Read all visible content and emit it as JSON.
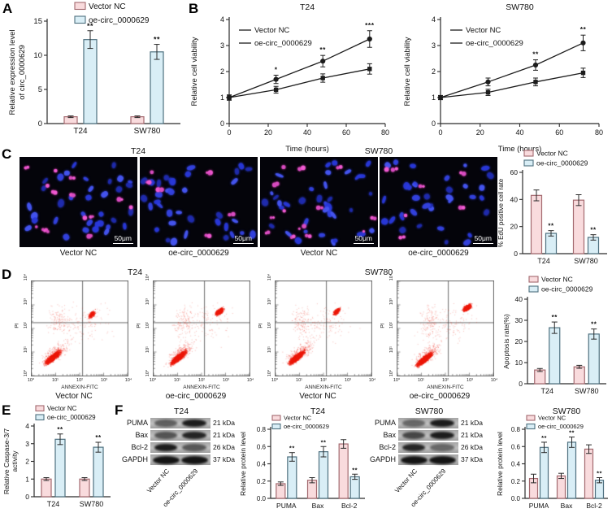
{
  "figure": {
    "panel_labels": {
      "A": "A",
      "B": "B",
      "C": "C",
      "D": "D",
      "E": "E",
      "F": "F"
    },
    "legend": {
      "vector_nc": "Vector NC",
      "oe": "oe-circ_0000629"
    }
  },
  "colors": {
    "vector_nc_fill": "#f9dbdd",
    "vector_nc_border": "#a3696f",
    "oe_fill": "#d9eef6",
    "oe_border": "#4e707f",
    "line": "#1c1c1c",
    "axis": "#2a2a2a",
    "error": "#2a2a2a",
    "flow_dot": "#ee1c0c",
    "star": "#111111",
    "edu_blue": "#2d3ce6",
    "edu_pink": "#f05ad2"
  },
  "chart_data": [
    {
      "id": "A",
      "type": "bar",
      "title": "",
      "ylabel": "Relative expression level\nof circ_0000629",
      "ylim": [
        0,
        15
      ],
      "yticks": [
        0,
        5,
        10,
        15
      ],
      "categories": [
        "T24",
        "SW780"
      ],
      "series": [
        {
          "name": "Vector NC",
          "values": [
            1.0,
            1.0
          ],
          "errors": [
            0.12,
            0.12
          ],
          "stars": [
            "",
            ""
          ]
        },
        {
          "name": "oe-circ_0000629",
          "values": [
            12.3,
            10.5
          ],
          "errors": [
            1.3,
            1.1
          ],
          "stars": [
            "**",
            "**"
          ]
        }
      ]
    },
    {
      "id": "B_T24",
      "type": "line",
      "title": "T24",
      "xlabel": "Time (hours)",
      "ylabel": "Relative cell viability",
      "xlim": [
        0,
        80
      ],
      "xticks": [
        0,
        20,
        40,
        60,
        80
      ],
      "ylim": [
        0,
        4
      ],
      "yticks": [
        0,
        1,
        2,
        3,
        4
      ],
      "x": [
        0,
        24,
        48,
        72
      ],
      "series": [
        {
          "name": "Vector NC",
          "marker": "circle",
          "values": [
            1.0,
            1.7,
            2.4,
            3.25
          ],
          "errors": [
            0.1,
            0.16,
            0.22,
            0.32
          ]
        },
        {
          "name": "oe-circ_0000629",
          "marker": "square",
          "values": [
            1.0,
            1.3,
            1.75,
            2.1
          ],
          "errors": [
            0.1,
            0.13,
            0.16,
            0.2
          ]
        }
      ],
      "stars": [
        {
          "i": 1,
          "label": "*"
        },
        {
          "i": 2,
          "label": "**"
        },
        {
          "i": 3,
          "label": "***"
        }
      ]
    },
    {
      "id": "B_SW780",
      "type": "line",
      "title": "SW780",
      "xlabel": "Time (hours)",
      "ylabel": "Relative cell viability",
      "xlim": [
        0,
        80
      ],
      "xticks": [
        0,
        20,
        40,
        60,
        80
      ],
      "ylim": [
        0,
        4
      ],
      "yticks": [
        0,
        1,
        2,
        3,
        4
      ],
      "x": [
        0,
        24,
        48,
        72
      ],
      "series": [
        {
          "name": "Vector NC",
          "marker": "circle",
          "values": [
            1.0,
            1.6,
            2.25,
            3.1
          ],
          "errors": [
            0.08,
            0.15,
            0.2,
            0.3
          ]
        },
        {
          "name": "oe-circ_0000629",
          "marker": "square",
          "values": [
            1.0,
            1.2,
            1.6,
            1.95
          ],
          "errors": [
            0.08,
            0.12,
            0.15,
            0.18
          ]
        }
      ],
      "stars": [
        {
          "i": 2,
          "label": "**"
        },
        {
          "i": 3,
          "label": "**"
        }
      ]
    },
    {
      "id": "C_EDU",
      "type": "bar",
      "title": "",
      "ylabel": "% EdU positive cell rate",
      "ylim": [
        0,
        60
      ],
      "yticks": [
        0,
        20,
        40,
        60
      ],
      "categories": [
        "T24",
        "SW780"
      ],
      "series": [
        {
          "name": "Vector NC",
          "values": [
            43,
            39.5
          ],
          "errors": [
            4,
            4
          ],
          "stars": [
            "",
            ""
          ]
        },
        {
          "name": "oe-circ_0000629",
          "values": [
            15,
            12
          ],
          "errors": [
            2,
            2
          ],
          "stars": [
            "**",
            "**"
          ]
        }
      ]
    },
    {
      "id": "D_APO",
      "type": "bar",
      "title": "",
      "ylabel": "Apoptosis rate(%)",
      "ylim": [
        0,
        40
      ],
      "yticks": [
        0,
        10,
        20,
        30,
        40
      ],
      "categories": [
        "T24",
        "SW780"
      ],
      "series": [
        {
          "name": "Vector NC",
          "values": [
            6.5,
            8
          ],
          "errors": [
            0.7,
            0.7
          ],
          "stars": [
            "",
            ""
          ]
        },
        {
          "name": "oe-circ_0000629",
          "values": [
            26.5,
            23.5
          ],
          "errors": [
            2.7,
            2.4
          ],
          "stars": [
            "**",
            "**"
          ]
        }
      ]
    },
    {
      "id": "E_CASP",
      "type": "bar",
      "title": "",
      "ylabel": "Relative Caspase-3/7\nactivity",
      "ylim": [
        0,
        4
      ],
      "yticks": [
        0,
        1,
        2,
        3,
        4
      ],
      "categories": [
        "T24",
        "SW780"
      ],
      "series": [
        {
          "name": "Vector NC",
          "values": [
            1.0,
            1.0
          ],
          "errors": [
            0.08,
            0.08
          ],
          "stars": [
            "",
            ""
          ]
        },
        {
          "name": "oe-circ_0000629",
          "values": [
            3.25,
            2.8
          ],
          "errors": [
            0.3,
            0.28
          ],
          "stars": [
            "**",
            "**"
          ]
        }
      ]
    },
    {
      "id": "F_T24",
      "type": "bar",
      "title": "T24",
      "ylabel": "Relative protein level",
      "ylim": [
        0,
        0.8
      ],
      "yticks": [
        0,
        0.2,
        0.4,
        0.6,
        0.8
      ],
      "ydec": 1,
      "categories": [
        "PUMA",
        "Bax",
        "Bcl-2"
      ],
      "series": [
        {
          "name": "Vector NC",
          "values": [
            0.17,
            0.21,
            0.63
          ],
          "errors": [
            0.02,
            0.03,
            0.05
          ],
          "stars": [
            "",
            "",
            ""
          ]
        },
        {
          "name": "oe-circ_0000629",
          "values": [
            0.48,
            0.54,
            0.25
          ],
          "errors": [
            0.05,
            0.06,
            0.03
          ],
          "stars": [
            "**",
            "**",
            "**"
          ]
        }
      ]
    },
    {
      "id": "F_SW780",
      "type": "bar",
      "title": "SW780",
      "ylabel": "Relative protein level",
      "ylim": [
        0,
        0.8
      ],
      "yticks": [
        0,
        0.2,
        0.4,
        0.6,
        0.8
      ],
      "ydec": 1,
      "categories": [
        "PUMA",
        "Bax",
        "Bcl-2"
      ],
      "series": [
        {
          "name": "Vector NC",
          "values": [
            0.23,
            0.26,
            0.57
          ],
          "errors": [
            0.05,
            0.03,
            0.05
          ],
          "stars": [
            "",
            "",
            ""
          ]
        },
        {
          "name": "oe-circ_0000629",
          "values": [
            0.59,
            0.65,
            0.21
          ],
          "errors": [
            0.06,
            0.06,
            0.03
          ],
          "stars": [
            "**",
            "**",
            "**"
          ]
        }
      ]
    },
    {
      "id": "FLOW_T24_NC",
      "type": "scatter",
      "group": "T24",
      "condition": "Vector NC",
      "xlabel": "ANNEXIN-FITC",
      "ylabel": "PI",
      "xticks": [
        "10⁰",
        "10¹",
        "10²",
        "10³",
        "10⁴"
      ],
      "yticks": [
        "10⁰",
        "10¹",
        "10²",
        "10³",
        "10⁴"
      ],
      "viable_cluster": {
        "center": [
          0.22,
          0.2
        ],
        "n": 1500
      },
      "apoptotic_cluster": {
        "center": [
          0.62,
          0.65
        ],
        "n": 280
      }
    },
    {
      "id": "FLOW_T24_OE",
      "type": "scatter",
      "group": "T24",
      "condition": "oe-circ_0000629",
      "xlabel": "ANNEXIN-FITC",
      "ylabel": "PI",
      "xticks": [
        "10⁰",
        "10¹",
        "10²",
        "10³",
        "10⁴"
      ],
      "yticks": [
        "10⁰",
        "10¹",
        "10²",
        "10³",
        "10⁴"
      ],
      "viable_cluster": {
        "center": [
          0.26,
          0.2
        ],
        "n": 1500
      },
      "apoptotic_cluster": {
        "center": [
          0.68,
          0.68
        ],
        "n": 640
      }
    },
    {
      "id": "FLOW_SW780_NC",
      "type": "scatter",
      "group": "SW780",
      "condition": "Vector NC",
      "xlabel": "ANNEXIN-FITC",
      "ylabel": "PI",
      "xticks": [
        "10⁰",
        "10¹",
        "10²",
        "10³",
        "10⁴"
      ],
      "yticks": [
        "10⁰",
        "10¹",
        "10²",
        "10³",
        "10⁴"
      ],
      "viable_cluster": {
        "center": [
          0.22,
          0.2
        ],
        "n": 1500
      },
      "apoptotic_cluster": {
        "center": [
          0.63,
          0.68
        ],
        "n": 320
      }
    },
    {
      "id": "FLOW_SW780_OE",
      "type": "scatter",
      "group": "SW780",
      "condition": "oe-circ_0000629",
      "xlabel": "ANNEXIN-FITC",
      "ylabel": "PI",
      "xticks": [
        "10⁰",
        "10¹",
        "10²",
        "10³",
        "10⁴"
      ],
      "yticks": [
        "10⁰",
        "10¹",
        "10²",
        "10³",
        "10⁴"
      ],
      "viable_cluster": {
        "center": [
          0.28,
          0.18
        ],
        "n": 1500
      },
      "apoptotic_cluster": {
        "center": [
          0.72,
          0.72
        ],
        "n": 640
      }
    }
  ],
  "panel_c": {
    "groups": [
      {
        "title": "T24"
      },
      {
        "title": "SW780"
      }
    ],
    "images": [
      {
        "label": "Vector NC",
        "scale_bar": "50μm",
        "edu_density": "high"
      },
      {
        "label": "oe-circ_0000629",
        "scale_bar": "50μm",
        "edu_density": "low"
      },
      {
        "label": "Vector NC",
        "scale_bar": "50μm",
        "edu_density": "high"
      },
      {
        "label": "oe-circ_0000629",
        "scale_bar": "50μm",
        "edu_density": "low"
      }
    ]
  },
  "panel_d": {
    "groups": [
      {
        "title": "T24"
      },
      {
        "title": "SW780"
      }
    ],
    "plots": [
      {
        "label": "Vector NC"
      },
      {
        "label": "oe-circ_0000629"
      },
      {
        "label": "Vector NC"
      },
      {
        "label": "oe-circ_0000629"
      }
    ]
  },
  "panel_f": {
    "blots": [
      {
        "title": "T24",
        "lanes": [
          "Vector NC",
          "oe-circ_0000629"
        ],
        "rows": [
          {
            "protein": "PUMA",
            "kda": "21 kDa",
            "intensity": [
              0.55,
              0.95
            ]
          },
          {
            "protein": "Bax",
            "kda": "21 kDa",
            "intensity": [
              0.62,
              0.9
            ]
          },
          {
            "protein": "Bcl-2",
            "kda": "26 kDa",
            "intensity": [
              0.95,
              0.6
            ]
          },
          {
            "protein": "GAPDH",
            "kda": "37 kDa",
            "intensity": [
              1,
              1
            ]
          }
        ]
      },
      {
        "title": "SW780",
        "lanes": [
          "Vector NC",
          "oe-circ_0000629"
        ],
        "rows": [
          {
            "protein": "PUMA",
            "kda": "21 kDa",
            "intensity": [
              0.5,
              0.95
            ]
          },
          {
            "protein": "Bax",
            "kda": "21 kDa",
            "intensity": [
              0.7,
              0.95
            ]
          },
          {
            "protein": "Bcl-2",
            "kda": "26 kDa",
            "intensity": [
              0.9,
              0.5
            ]
          },
          {
            "protein": "GAPDH",
            "kda": "37 kDa",
            "intensity": [
              1,
              1
            ]
          }
        ]
      }
    ]
  }
}
